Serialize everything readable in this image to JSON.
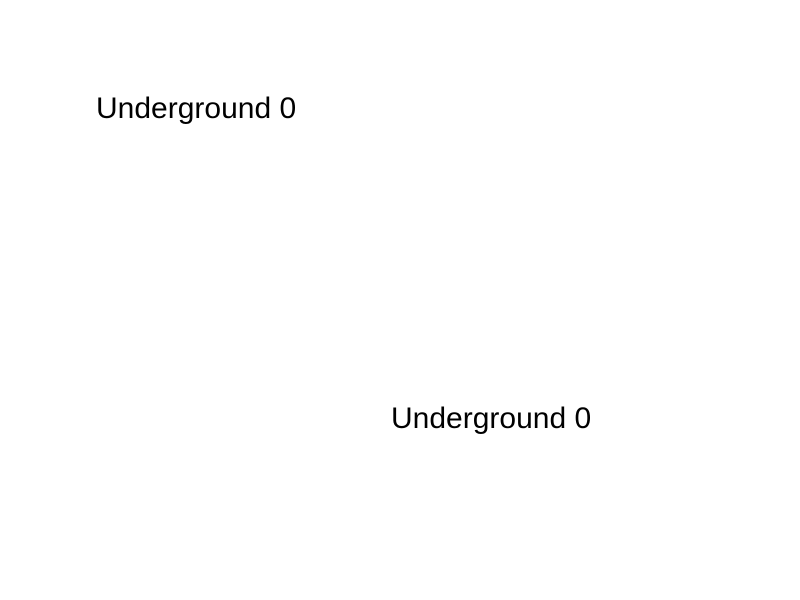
{
  "slide": {
    "text_top": "Underground 0",
    "text_bottom": "Underground 0"
  }
}
